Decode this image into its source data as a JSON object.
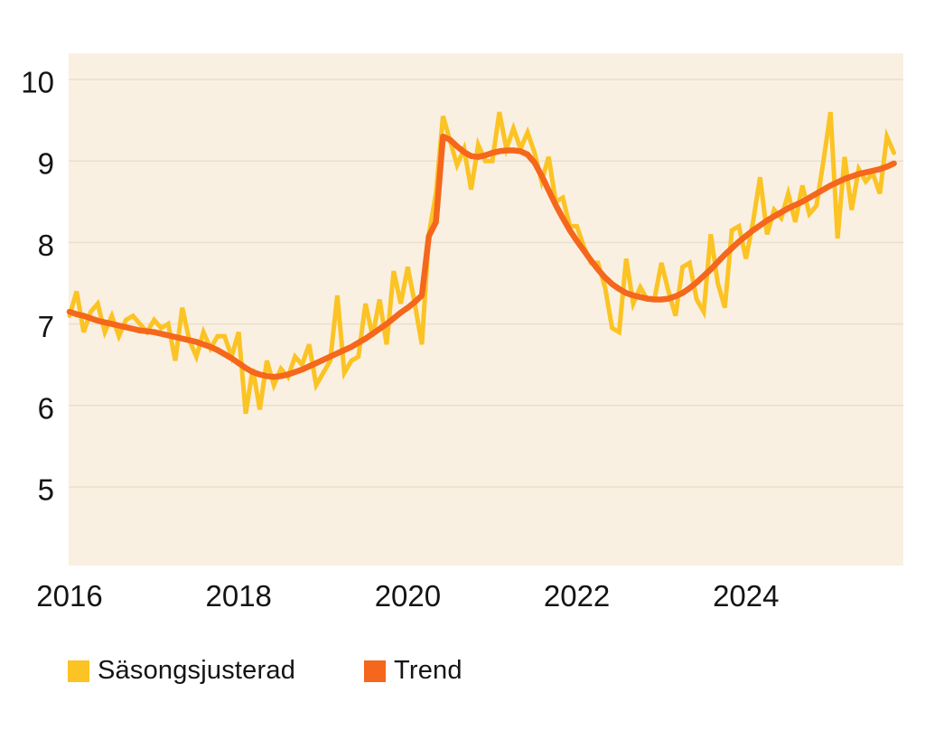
{
  "chart_data": {
    "type": "line",
    "title": "",
    "xlabel": "",
    "ylabel": "",
    "frequency": "monthly",
    "x_start": "2016-01",
    "x_end": "2025-10",
    "x_tick_labels": [
      "2016",
      "2018",
      "2020",
      "2022",
      "2024"
    ],
    "x_tick_month_index": [
      0,
      24,
      48,
      72,
      96
    ],
    "y_ticks": [
      5,
      6,
      7,
      8,
      9,
      10
    ],
    "y_range": [
      4.0,
      10.32
    ],
    "grid": "horizontal",
    "legend_position": "bottom",
    "plot_background": "#faf0e1",
    "grid_color": "#e9dfce",
    "tick_label_color": "#141414",
    "series": [
      {
        "name": "Säsongsjusterad",
        "color": "#fbc324",
        "values": [
          7.1,
          7.4,
          6.9,
          7.15,
          7.25,
          6.9,
          7.1,
          6.85,
          7.05,
          7.1,
          7.0,
          6.9,
          7.05,
          6.95,
          7.0,
          6.55,
          7.2,
          6.8,
          6.6,
          6.9,
          6.7,
          6.85,
          6.85,
          6.6,
          6.9,
          5.9,
          6.45,
          5.95,
          6.55,
          6.25,
          6.45,
          6.35,
          6.6,
          6.5,
          6.75,
          6.25,
          6.4,
          6.55,
          7.35,
          6.4,
          6.55,
          6.6,
          7.25,
          6.85,
          7.3,
          6.75,
          7.65,
          7.25,
          7.7,
          7.25,
          6.75,
          8.1,
          8.6,
          9.55,
          9.25,
          8.95,
          9.15,
          8.65,
          9.2,
          9.0,
          9.0,
          9.6,
          9.15,
          9.4,
          9.15,
          9.35,
          9.1,
          8.75,
          9.05,
          8.5,
          8.55,
          8.2,
          8.2,
          7.95,
          7.75,
          7.75,
          7.45,
          6.95,
          6.9,
          7.8,
          7.25,
          7.45,
          7.3,
          7.3,
          7.75,
          7.4,
          7.1,
          7.7,
          7.75,
          7.3,
          7.15,
          8.1,
          7.5,
          7.2,
          8.15,
          8.2,
          7.8,
          8.25,
          8.8,
          8.1,
          8.4,
          8.3,
          8.6,
          8.25,
          8.7,
          8.35,
          8.45,
          9.0,
          9.6,
          8.05,
          9.05,
          8.4,
          8.9,
          8.75,
          8.85,
          8.6,
          9.3,
          9.1
        ]
      },
      {
        "name": "Trend",
        "color": "#f4671c",
        "values": [
          7.15,
          7.12,
          7.1,
          7.07,
          7.04,
          7.02,
          7.0,
          6.98,
          6.96,
          6.94,
          6.92,
          6.91,
          6.9,
          6.88,
          6.86,
          6.84,
          6.82,
          6.8,
          6.78,
          6.75,
          6.72,
          6.68,
          6.63,
          6.58,
          6.52,
          6.46,
          6.41,
          6.38,
          6.36,
          6.35,
          6.36,
          6.38,
          6.41,
          6.44,
          6.48,
          6.52,
          6.56,
          6.6,
          6.64,
          6.68,
          6.72,
          6.77,
          6.82,
          6.88,
          6.94,
          7.0,
          7.07,
          7.14,
          7.2,
          7.27,
          7.35,
          8.08,
          8.25,
          9.3,
          9.26,
          9.18,
          9.11,
          9.06,
          9.05,
          9.07,
          9.1,
          9.12,
          9.13,
          9.13,
          9.12,
          9.08,
          8.98,
          8.82,
          8.64,
          8.46,
          8.3,
          8.15,
          8.02,
          7.9,
          7.78,
          7.67,
          7.57,
          7.49,
          7.43,
          7.38,
          7.35,
          7.33,
          7.31,
          7.3,
          7.3,
          7.31,
          7.34,
          7.38,
          7.44,
          7.51,
          7.59,
          7.67,
          7.76,
          7.85,
          7.93,
          8.01,
          8.08,
          8.15,
          8.21,
          8.27,
          8.32,
          8.37,
          8.42,
          8.46,
          8.5,
          8.55,
          8.6,
          8.65,
          8.7,
          8.74,
          8.78,
          8.81,
          8.84,
          8.86,
          8.88,
          8.9,
          8.93,
          8.97
        ]
      }
    ]
  },
  "legend": {
    "items": [
      {
        "label": "Säsongsjusterad",
        "color": "#fbc324"
      },
      {
        "label": "Trend",
        "color": "#f4671c"
      }
    ]
  }
}
